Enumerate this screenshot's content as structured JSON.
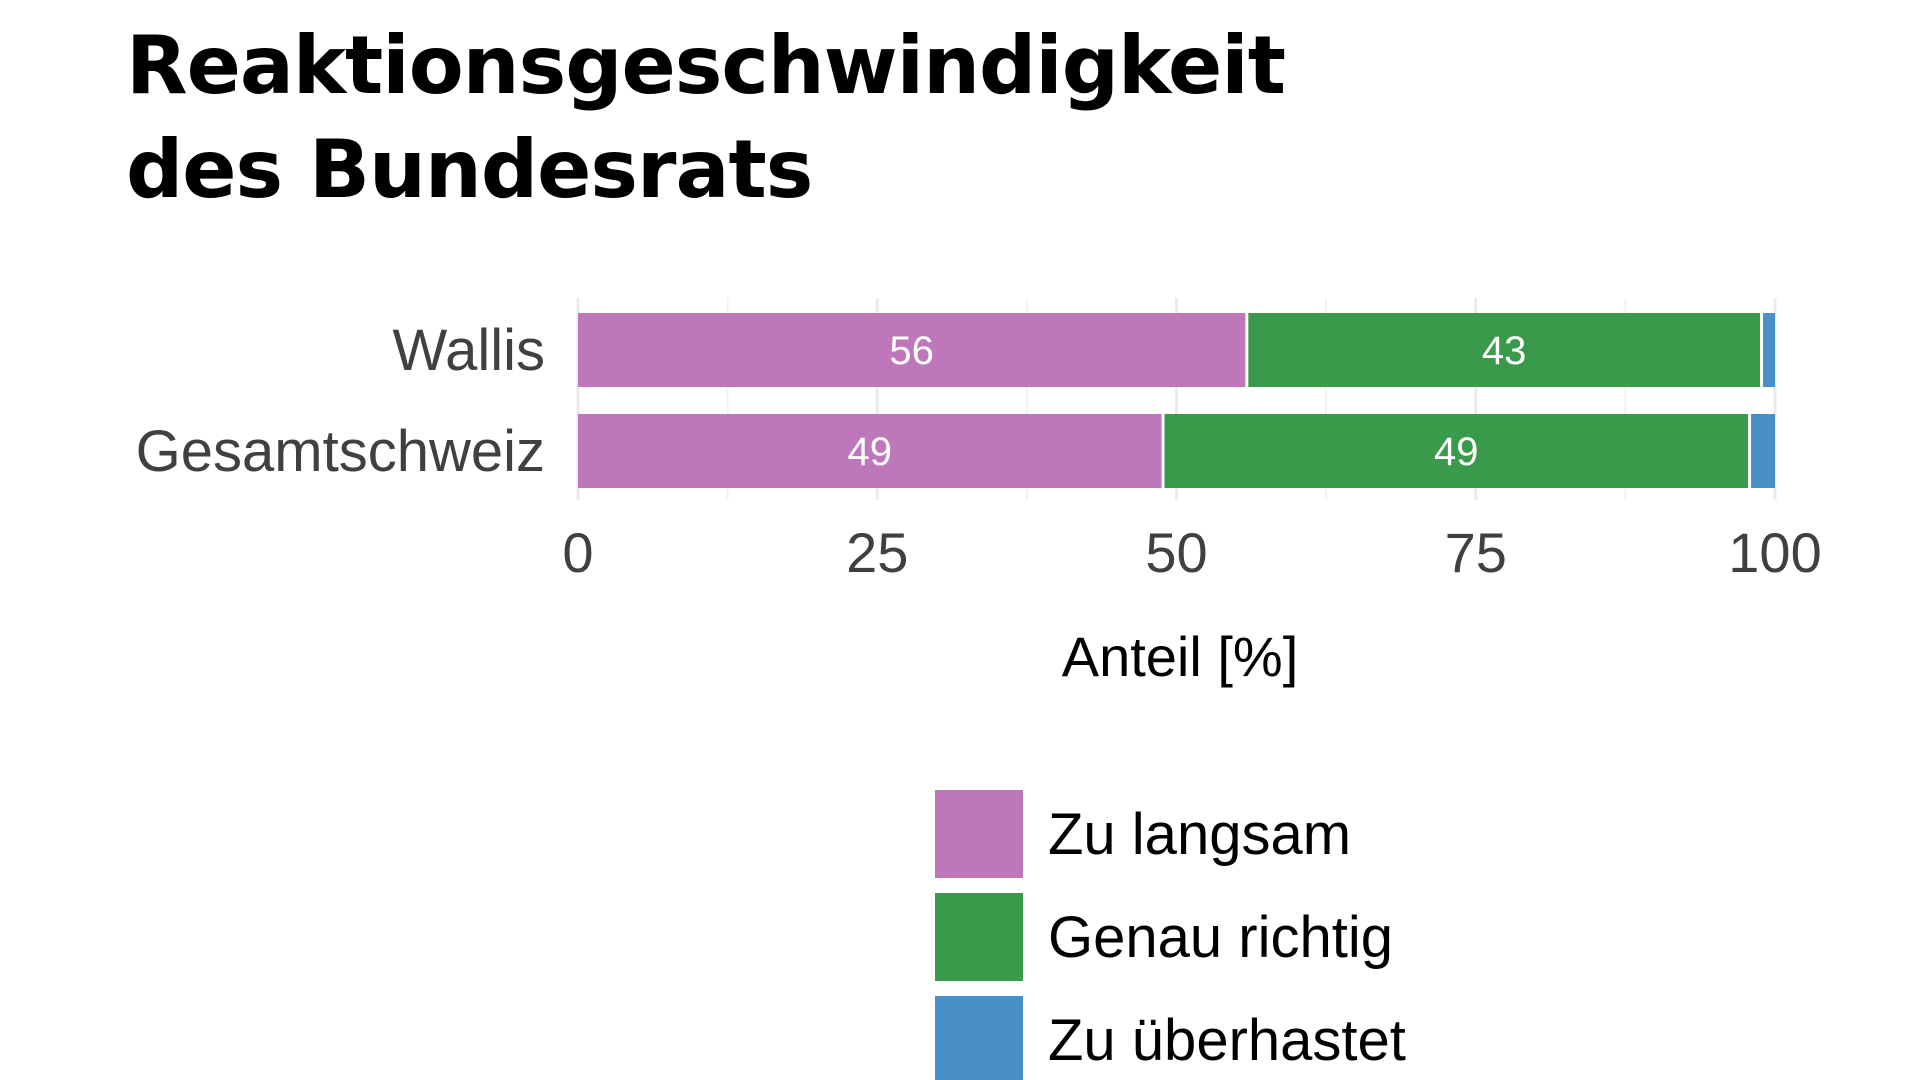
{
  "chart_data": {
    "type": "bar",
    "orientation": "horizontal",
    "stacked": true,
    "title_lines": [
      "Reaktionsgeschwindigkeit",
      "des Bundesrats"
    ],
    "categories": [
      "Wallis",
      "Gesamtschweiz"
    ],
    "series": [
      {
        "name": "Zu langsam",
        "color": "#bf77bb",
        "values": [
          56,
          49
        ],
        "labels": [
          "56",
          "49"
        ]
      },
      {
        "name": "Genau richtig",
        "color": "#3a9a4c",
        "values": [
          43,
          49
        ],
        "labels": [
          "43",
          "49"
        ]
      },
      {
        "name": "Zu überhastet",
        "color": "#4a90c8",
        "values": [
          1,
          2
        ],
        "labels": [
          "",
          ""
        ]
      }
    ],
    "xlabel": "Anteil [%]",
    "xlim": [
      0,
      100
    ],
    "xticks": [
      "0",
      "25",
      "50",
      "75",
      "100"
    ],
    "grid": true,
    "legend_position": "bottom"
  }
}
